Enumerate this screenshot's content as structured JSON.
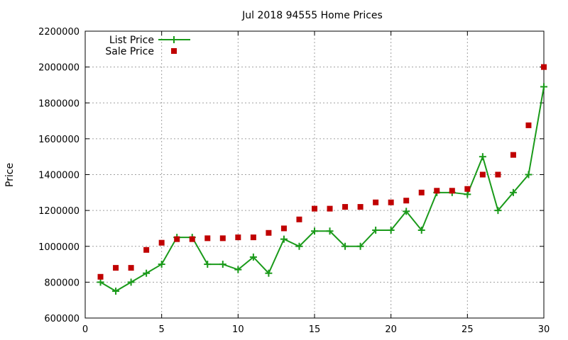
{
  "chart_data": {
    "type": "line",
    "title": "Jul 2018 94555 Home Prices",
    "xlabel": "",
    "ylabel": "Price",
    "xlim": [
      0,
      30
    ],
    "ylim": [
      600000,
      2200000
    ],
    "xticks": [
      0,
      5,
      10,
      15,
      20,
      25,
      30
    ],
    "yticks": [
      600000,
      800000,
      1000000,
      1200000,
      1400000,
      1600000,
      1800000,
      2000000,
      2200000
    ],
    "grid": true,
    "legend_position": "top-left",
    "series": [
      {
        "name": "List Price",
        "style": "line+plus",
        "color": "#1a9a1a",
        "x": [
          1,
          2,
          3,
          4,
          5,
          6,
          7,
          8,
          9,
          10,
          11,
          12,
          13,
          14,
          15,
          16,
          17,
          18,
          19,
          20,
          21,
          22,
          23,
          24,
          25,
          26,
          27,
          28,
          29,
          30
        ],
        "values": [
          800000,
          750000,
          800000,
          850000,
          900000,
          1050000,
          1050000,
          900000,
          900000,
          870000,
          940000,
          850000,
          1040000,
          1000000,
          1085000,
          1085000,
          1000000,
          1000000,
          1090000,
          1090000,
          1195000,
          1090000,
          1300000,
          1300000,
          1290000,
          1500000,
          1200000,
          1300000,
          1400000,
          1890000
        ]
      },
      {
        "name": "Sale Price",
        "style": "square",
        "color": "#c00000",
        "x": [
          1,
          2,
          3,
          4,
          5,
          6,
          7,
          8,
          9,
          10,
          11,
          12,
          13,
          14,
          15,
          16,
          17,
          18,
          19,
          20,
          21,
          22,
          23,
          24,
          25,
          26,
          27,
          28,
          29,
          30
        ],
        "values": [
          830000,
          880000,
          880000,
          980000,
          1020000,
          1040000,
          1040000,
          1045000,
          1045000,
          1050000,
          1050000,
          1075000,
          1100000,
          1150000,
          1210000,
          1210000,
          1220000,
          1220000,
          1245000,
          1245000,
          1255000,
          1300000,
          1310000,
          1310000,
          1320000,
          1400000,
          1400000,
          1510000,
          1675000,
          2000000
        ]
      }
    ]
  }
}
